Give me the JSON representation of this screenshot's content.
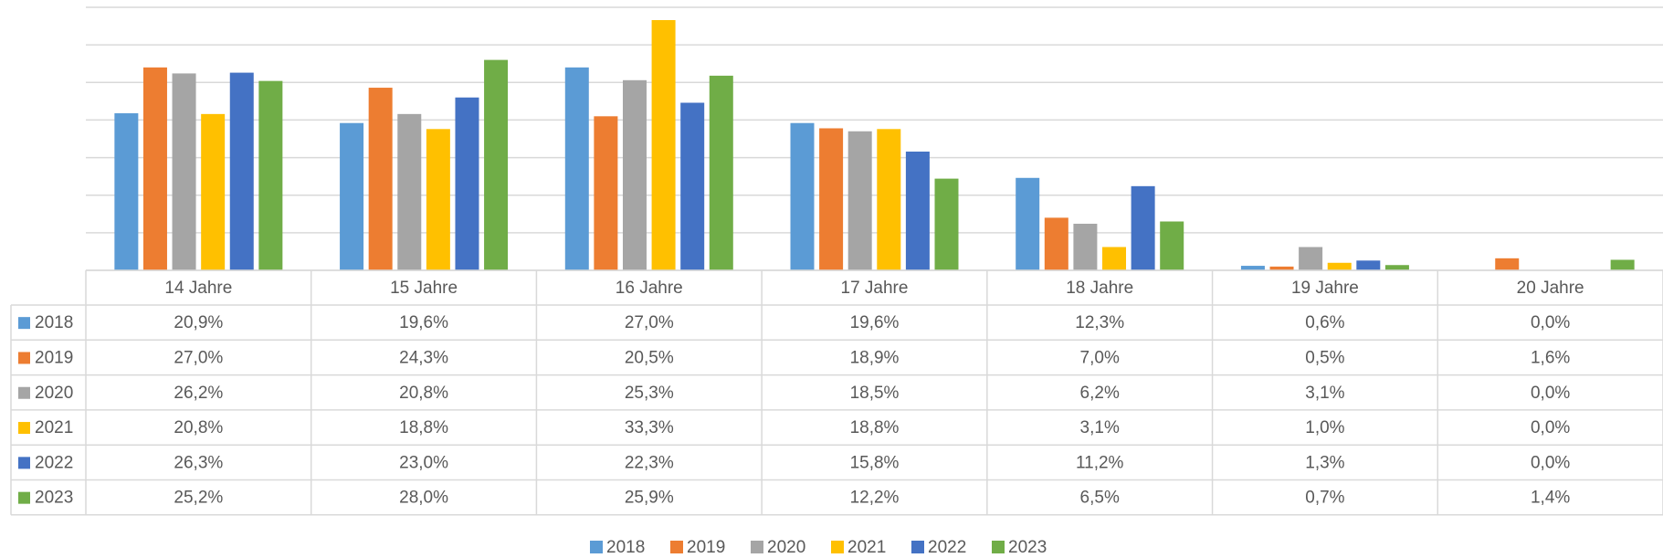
{
  "chart_data": {
    "type": "bar",
    "categories": [
      "14 Jahre",
      "15 Jahre",
      "16 Jahre",
      "17 Jahre",
      "18 Jahre",
      "19 Jahre",
      "20 Jahre"
    ],
    "ylim": [
      0,
      35
    ],
    "yticks": [
      0,
      5,
      10,
      15,
      20,
      25,
      30,
      35
    ],
    "grid": true,
    "legend": "bottom",
    "series": [
      {
        "name": "2018",
        "color": "#5b9bd5",
        "values": [
          20.9,
          19.6,
          27.0,
          19.6,
          12.3,
          0.6,
          0.0
        ],
        "value_labels": [
          "20,9%",
          "19,6%",
          "27,0%",
          "19,6%",
          "12,3%",
          "0,6%",
          "0,0%"
        ]
      },
      {
        "name": "2019",
        "color": "#ed7d31",
        "values": [
          27.0,
          24.3,
          20.5,
          18.9,
          7.0,
          0.5,
          1.6
        ],
        "value_labels": [
          "27,0%",
          "24,3%",
          "20,5%",
          "18,9%",
          "7,0%",
          "0,5%",
          "1,6%"
        ]
      },
      {
        "name": "2020",
        "color": "#a5a5a5",
        "values": [
          26.2,
          20.8,
          25.3,
          18.5,
          6.2,
          3.1,
          0.0
        ],
        "value_labels": [
          "26,2%",
          "20,8%",
          "25,3%",
          "18,5%",
          "6,2%",
          "3,1%",
          "0,0%"
        ]
      },
      {
        "name": "2021",
        "color": "#ffc000",
        "values": [
          20.8,
          18.8,
          33.3,
          18.8,
          3.1,
          1.0,
          0.0
        ],
        "value_labels": [
          "20,8%",
          "18,8%",
          "33,3%",
          "18,8%",
          "3,1%",
          "1,0%",
          "0,0%"
        ]
      },
      {
        "name": "2022",
        "color": "#4472c4",
        "values": [
          26.3,
          23.0,
          22.3,
          15.8,
          11.2,
          1.3,
          0.0
        ],
        "value_labels": [
          "26,3%",
          "23,0%",
          "22,3%",
          "15,8%",
          "11,2%",
          "1,3%",
          "0,0%"
        ]
      },
      {
        "name": "2023",
        "color": "#70ad47",
        "values": [
          25.2,
          28.0,
          25.9,
          12.2,
          6.5,
          0.7,
          1.4
        ],
        "value_labels": [
          "25,2%",
          "28,0%",
          "25,9%",
          "12,2%",
          "6,5%",
          "0,7%",
          "1,4%"
        ]
      }
    ]
  }
}
